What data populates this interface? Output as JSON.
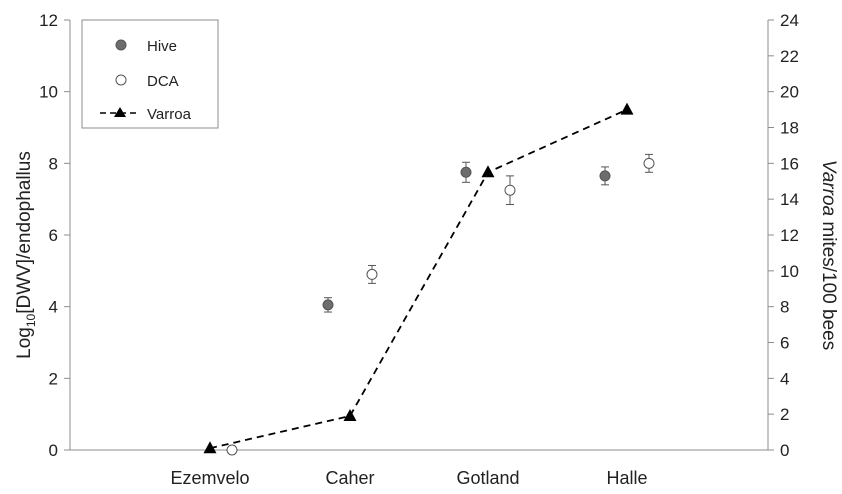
{
  "chart_data": {
    "type": "scatter",
    "categories": [
      "Ezemvelo",
      "Caher",
      "Gotland",
      "Halle"
    ],
    "series": [
      {
        "name": "Hive",
        "axis": "left",
        "marker": "filled-circle",
        "values": [
          null,
          4.05,
          7.75,
          7.65
        ],
        "errors": [
          null,
          0.2,
          0.28,
          0.25
        ]
      },
      {
        "name": "DCA",
        "axis": "left",
        "marker": "open-circle",
        "values": [
          0.0,
          4.9,
          7.25,
          8.0
        ],
        "errors": [
          null,
          0.25,
          0.4,
          0.25
        ]
      },
      {
        "name": "Varroa",
        "axis": "right",
        "marker": "triangle-dashed-line",
        "values": [
          0.1,
          1.9,
          15.5,
          19.0
        ]
      }
    ],
    "ylabel_left_main": "Log",
    "ylabel_left_sub": "10",
    "ylabel_left_rest": "[DWV]/endophallus",
    "ylabel_right_italic": "Varroa",
    "ylabel_right_rest": " mites/100 bees",
    "ylim_left": [
      0,
      12
    ],
    "ylim_right": [
      0,
      24
    ],
    "yticks_left": [
      "0",
      "2",
      "4",
      "6",
      "8",
      "10",
      "12"
    ],
    "yticks_right": [
      "0",
      "2",
      "4",
      "6",
      "8",
      "10",
      "12",
      "14",
      "16",
      "18",
      "20",
      "22",
      "24"
    ],
    "legend_position": "top-left",
    "grid": false,
    "colors": {
      "hive": "#6d6d6d",
      "dca": "#ffffff",
      "varroa": "#000000",
      "axis": "#8c8c8c"
    }
  }
}
